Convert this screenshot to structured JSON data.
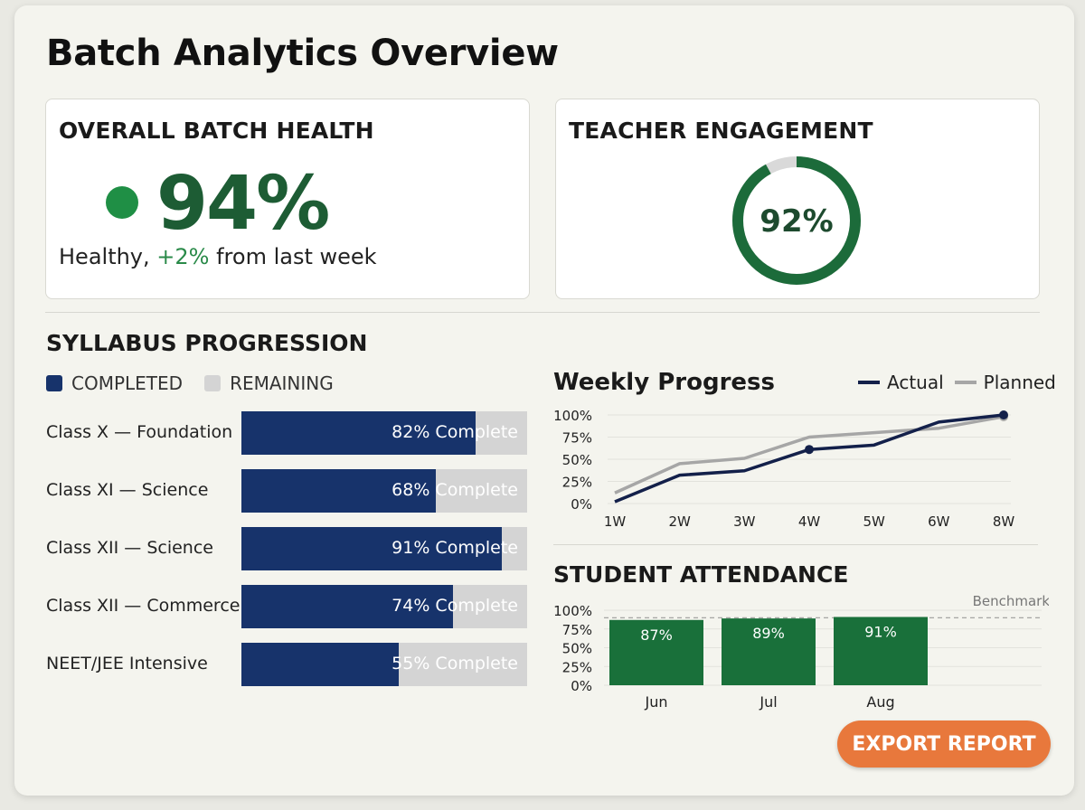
{
  "page": {
    "title": "Batch Analytics Overview"
  },
  "health_card": {
    "title": "OVERALL BATCH HEALTH",
    "value": "94%",
    "status_prefix": "Healthy, ",
    "status_delta": "+2%",
    "status_suffix": " from last week",
    "colors": {
      "dot": "#1f8f45",
      "value": "#1d5c34"
    }
  },
  "engagement_card": {
    "title": "TEACHER ENGAGEMENT",
    "value_label": "92%",
    "value": 92,
    "colors": {
      "ring": "#1c6b3a",
      "track": "#d9d9d9"
    }
  },
  "syllabus": {
    "title": "SYLLABUS PROGRESSION",
    "legend": {
      "completed": "COMPLETED",
      "remaining": "REMAINING"
    },
    "colors": {
      "completed": "#17336b",
      "remaining": "#d4d4d4"
    },
    "rows": [
      {
        "label": "Class X — Foundation",
        "percent": 82,
        "text": "82% Complete"
      },
      {
        "label": "Class XI — Science",
        "percent": 68,
        "text": "68% Complete"
      },
      {
        "label": "Class XII — Science",
        "percent": 91,
        "text": "91% Complete"
      },
      {
        "label": "Class XII — Commerce",
        "percent": 74,
        "text": "74% Complete"
      },
      {
        "label": "NEET/JEE Intensive",
        "percent": 55,
        "text": "55% Complete"
      }
    ]
  },
  "weekly_progress": {
    "title": "Weekly Progress",
    "legend": {
      "actual": "Actual",
      "planned": "Planned"
    },
    "colors": {
      "actual": "#13204a",
      "planned": "#a6a6a6"
    }
  },
  "attendance": {
    "title": "STUDENT ATTENDANCE",
    "benchmark_label": "Benchmark"
  },
  "chart_data": [
    {
      "type": "line",
      "title": "Weekly Progress",
      "x": [
        "1W",
        "2W",
        "3W",
        "4W",
        "5W",
        "6W",
        "8W"
      ],
      "yticks": [
        "100%",
        "75%",
        "50%",
        "25%",
        "0%"
      ],
      "ylim": [
        0,
        100
      ],
      "legend_position": "top-right",
      "series": [
        {
          "name": "Actual",
          "values": [
            2,
            32,
            37,
            61,
            66,
            92,
            100
          ],
          "markers_at": [
            "4W",
            "8W"
          ]
        },
        {
          "name": "Planned",
          "values": [
            12,
            45,
            51,
            75,
            80,
            85,
            98
          ],
          "markers_at": [
            "8W"
          ]
        }
      ]
    },
    {
      "type": "bar",
      "title": "STUDENT ATTENDANCE",
      "categories": [
        "Jun",
        "Jul",
        "Aug"
      ],
      "values": [
        87,
        89,
        91
      ],
      "value_labels": [
        "87%",
        "89%",
        "91%"
      ],
      "yticks": [
        "100%",
        "75%",
        "50%",
        "25%",
        "0%"
      ],
      "ylim": [
        0,
        100
      ],
      "benchmark": 90,
      "bar_color": "#19703a"
    }
  ],
  "actions": {
    "export_label": "EXPORT REPORT",
    "export_color": "#e8783c"
  }
}
